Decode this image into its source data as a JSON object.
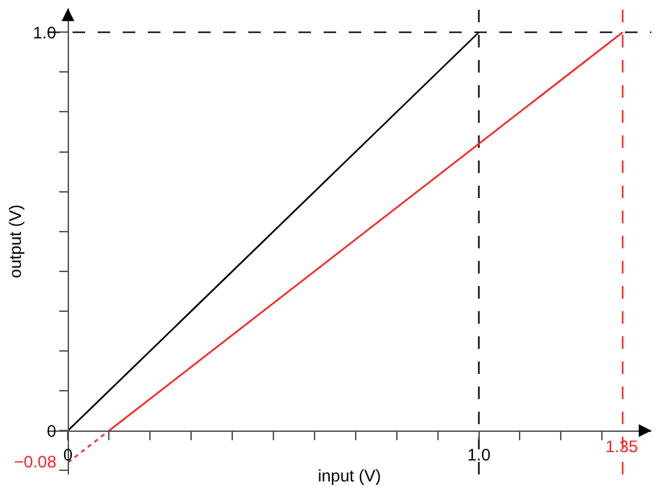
{
  "chart_data": {
    "type": "line",
    "xlabel": "input (V)",
    "ylabel": "output (V)",
    "series": [
      {
        "color": "#000000",
        "x": [
          0,
          1.0
        ],
        "values": [
          0,
          1.0
        ],
        "line_style": "solid"
      },
      {
        "color": "#ff2020",
        "x": [
          0,
          0.1
        ],
        "values": [
          -0.08,
          0
        ],
        "line_style": "dotted"
      },
      {
        "color": "#ff2020",
        "x": [
          0.1,
          1.35
        ],
        "values": [
          0,
          1.0
        ],
        "line_style": "solid"
      }
    ],
    "xlim": [
      -0.05,
      1.42
    ],
    "ylim": [
      -0.11,
      1.06
    ],
    "xticks": [
      0,
      {
        "value": 0.1,
        "label": null
      },
      {
        "value": 0.2,
        "label": null
      },
      {
        "value": 0.3,
        "label": null
      },
      {
        "value": 0.4,
        "label": null
      },
      {
        "value": 0.5,
        "label": null
      },
      {
        "value": 0.6,
        "label": null
      },
      {
        "value": 0.7,
        "label": null
      },
      {
        "value": 0.8,
        "label": null
      },
      {
        "value": 0.9,
        "label": null
      },
      {
        "value": 1.0,
        "label": "1.0"
      },
      {
        "value": 1.1,
        "label": null
      },
      {
        "value": 1.2,
        "label": null
      },
      {
        "value": 1.3,
        "label": null
      }
    ],
    "yticks": [
      {
        "value": -0.1,
        "label": null
      },
      0,
      {
        "value": 0.1,
        "label": null
      },
      {
        "value": 0.2,
        "label": null
      },
      {
        "value": 0.3,
        "label": null
      },
      {
        "value": 0.4,
        "label": null
      },
      {
        "value": 0.5,
        "label": null
      },
      {
        "value": 0.6,
        "label": null
      },
      {
        "value": 0.7,
        "label": null
      },
      {
        "value": 0.8,
        "label": null
      },
      {
        "value": 0.9,
        "label": null
      },
      {
        "value": 1.0,
        "label": "1.0"
      }
    ],
    "ref_lines": [
      {
        "axis": "x",
        "value": 1.0,
        "color": "#000000",
        "line_style": "dashed"
      },
      {
        "axis": "y",
        "value": 1.0,
        "color": "#000000",
        "line_style": "dashed"
      },
      {
        "axis": "x",
        "value": 1.35,
        "label": "1.35",
        "color": "#ff2020",
        "line_style": "dashed"
      }
    ],
    "annotations": [
      {
        "text": "−0.08",
        "x": 0,
        "y": -0.08
      }
    ],
    "grid": false,
    "marker": "none"
  }
}
